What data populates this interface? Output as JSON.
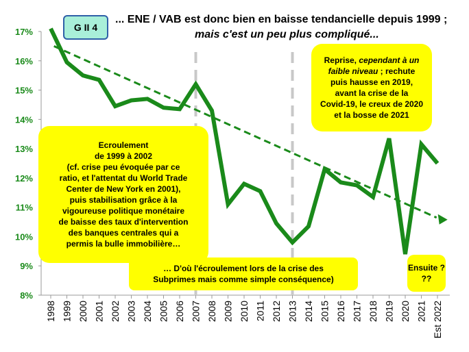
{
  "header": {
    "tag": "G II 4",
    "title_line1": "... ENE / VAB est donc bien en baisse tendancielle depuis 1999 ;",
    "title_line2": "mais c'est un peu plus compliqué..."
  },
  "notes": {
    "left": [
      "Ecroulement",
      "de 1999 à 2002",
      "(cf. crise peu évoquée par ce",
      "ratio, et l'attentat du World Trade",
      "Center de New York en 2001),",
      "puis stabilisation grâce à la",
      "vigoureuse politique monétaire",
      "de baisse des taux d'intervention",
      "des banques centrales  qui a",
      "permis la bulle immobilière…"
    ],
    "right": {
      "line1": "Reprise, ",
      "line1_italic": "cependant à un",
      "line2_italic": "faible niveau",
      "line2_rest": " ; rechute",
      "rest": [
        "puis hausse en 2019,",
        "avant la crise de la",
        "Covid-19,  le creux de 2020",
        "et la bosse de 2021"
      ]
    },
    "bottom": [
      "… D'où l'écroulement lors de la crise des",
      "Subprimes mais comme  simple conséquence)"
    ],
    "small": [
      "Ensuite ?",
      "??"
    ]
  },
  "colors": {
    "series": "#1a8a1a",
    "trend": "#1a8a1a",
    "vline": "#c8c8c8",
    "axis_text": "#1a8a1a",
    "note_bg": "#ffff00",
    "tag_bg": "#a9efd9",
    "tag_border": "#2f5fa8"
  },
  "chart_data": {
    "type": "line",
    "title": "ENE / VAB",
    "xlabel": "",
    "ylabel": "",
    "categories": [
      "1998",
      "1999",
      "2000",
      "2001",
      "2002",
      "2003",
      "2004",
      "2005",
      "2006",
      "2007",
      "2008",
      "2009",
      "2010",
      "2011",
      "2012",
      "2013",
      "2014",
      "2015",
      "2016",
      "2017",
      "2018",
      "2019",
      "2020",
      "2021",
      "Est 2022"
    ],
    "y_ticks": [
      "8%",
      "9%",
      "10%",
      "11%",
      "12%",
      "13%",
      "14%",
      "15%",
      "16%",
      "17%"
    ],
    "ylim": [
      8,
      17
    ],
    "series": [
      {
        "name": "ENE / VAB",
        "values": [
          17.1,
          15.95,
          15.5,
          15.35,
          14.45,
          14.65,
          14.7,
          14.4,
          14.35,
          15.2,
          14.3,
          11.1,
          11.8,
          11.55,
          10.45,
          9.8,
          10.35,
          12.3,
          11.85,
          11.75,
          11.35,
          13.35,
          9.4,
          13.15,
          12.5
        ]
      }
    ],
    "trend": {
      "from": [
        0.2,
        16.5
      ],
      "to": [
        24.2,
        10.6
      ],
      "style": "dashed"
    },
    "vertical_markers": [
      "2007",
      "2013"
    ]
  }
}
